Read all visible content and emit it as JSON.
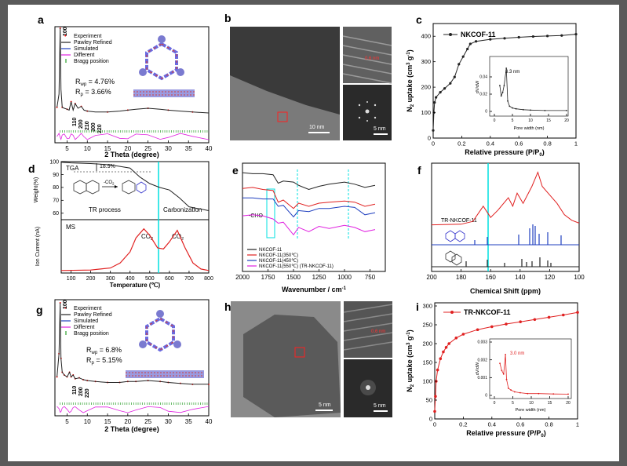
{
  "panels": {
    "a": {
      "letter": "a",
      "legend": [
        "Experiment",
        "Pawley Refined",
        "Simulated",
        "Different",
        "Bragg position"
      ],
      "rwp": "R",
      "rwp_sub": "wp",
      "rwp_val": " = 4.76%",
      "rp": "R",
      "rp_sub": "p",
      "rp_val": " = 3.66%",
      "peaks": [
        "100",
        "110",
        "200",
        "210",
        "300",
        "220"
      ]
    },
    "b": {
      "letter": "b",
      "scale1": "10 nm",
      "scale2": "5 nm",
      "inset_label": "0.6 nm"
    },
    "c": {
      "letter": "c",
      "legend": "NKCOF-11",
      "inset_peak": "3.3 nm",
      "inset_xlabel": "Pore width (nm)",
      "inset_ylabel": "dV/dW"
    },
    "d": {
      "letter": "d",
      "tga": "TGA",
      "loss": "18.9%",
      "loss_gas": "-CO",
      "loss_gas_sub": "2",
      "tr_process": "TR process",
      "carbonization": "Carbonization",
      "ms": "MS",
      "co2_a": "CO",
      "co2_a_sub": "2",
      "co2_b": "CO",
      "co2_b_sub": "2"
    },
    "e": {
      "letter": "e",
      "cho": "-CHO",
      "legend": [
        "NKCOF-11",
        "NKCOF-11(350℃)",
        "NKCOF-11(450℃)",
        "NKCOF-11(550℃) (TR-NKCOF-11)"
      ]
    },
    "f": {
      "letter": "f",
      "label": "TR-NKCOF-11"
    },
    "g": {
      "letter": "g",
      "legend": [
        "Experiment",
        "Pawley Refined",
        "Simulated",
        "Different",
        "Bragg position"
      ],
      "rwp": "R",
      "rwp_sub": "wp",
      "rwp_val": " = 6.8%",
      "rp": "R",
      "rp_sub": "p",
      "rp_val": " = 5.15%",
      "peaks": [
        "100",
        "110",
        "200",
        "220"
      ]
    },
    "h": {
      "letter": "h",
      "scale1": "5 nm",
      "scale2": "5 nm",
      "inset_label": "0.6 nm"
    },
    "i": {
      "letter": "i",
      "legend": "TR-NKCOF-11",
      "inset_peak": "3.0 nm",
      "inset_xlabel": "Pore width (nm)",
      "inset_ylabel": "dV/dW"
    }
  },
  "colors": {
    "experiment": "#ff0000",
    "refined": "#222222",
    "simulated": "#1f3fbf",
    "difference": "#e020e0",
    "bragg": "#2ca02c",
    "cyan": "#00e0e0"
  },
  "chart_data": [
    {
      "panel": "a",
      "type": "line",
      "xlabel": "2 Theta (degree)",
      "ylabel": "",
      "xlim": [
        2,
        40
      ],
      "xticks": [
        5,
        10,
        15,
        20,
        25,
        30,
        35,
        40
      ],
      "series": [
        {
          "name": "Experiment",
          "x": [
            2.5,
            3.0,
            3.3,
            3.5,
            3.8,
            4.3,
            5.0,
            5.5,
            6.0,
            6.5,
            7.0,
            7.7,
            8.5,
            9.2,
            10,
            12,
            15,
            18,
            20,
            22,
            25,
            28,
            30,
            33,
            36,
            40
          ],
          "y": [
            0.16,
            0.3,
            1.0,
            0.35,
            0.16,
            0.15,
            0.14,
            0.13,
            0.22,
            0.13,
            0.2,
            0.15,
            0.17,
            0.13,
            0.12,
            0.11,
            0.11,
            0.12,
            0.13,
            0.14,
            0.15,
            0.14,
            0.13,
            0.12,
            0.11,
            0.1
          ]
        }
      ]
    },
    {
      "panel": "c",
      "type": "line",
      "xlabel": "Relative pressure (P/P",
      "xlabel_sub": "0",
      "xlabel_end": ")",
      "ylabel": "N",
      "ylabel_sub": "2",
      "ylabel_mid": " uptake (cm",
      "ylabel_sup": "3",
      "ylabel_mid2": " g",
      "ylabel_sup2": "-1",
      "ylabel_end": ")",
      "xlim": [
        0,
        1
      ],
      "ylim": [
        0,
        450
      ],
      "xticks": [
        0.0,
        0.2,
        0.4,
        0.6,
        0.8,
        1.0
      ],
      "yticks": [
        0,
        100,
        200,
        300,
        400
      ],
      "series": [
        {
          "name": "NKCOF-11",
          "x": [
            0,
            0.005,
            0.01,
            0.02,
            0.05,
            0.08,
            0.12,
            0.15,
            0.18,
            0.21,
            0.24,
            0.26,
            0.3,
            0.4,
            0.5,
            0.6,
            0.7,
            0.8,
            0.9,
            1.0
          ],
          "y": [
            30,
            100,
            140,
            160,
            180,
            195,
            215,
            240,
            290,
            320,
            350,
            370,
            380,
            388,
            392,
            396,
            399,
            401,
            403,
            408
          ]
        }
      ],
      "inset": {
        "xlim": [
          0,
          20
        ],
        "ylim": [
          0,
          0.06
        ],
        "xticks": [
          0,
          5,
          10,
          15,
          20
        ],
        "yticks": [
          0.0,
          0.02,
          0.04
        ],
        "x": [
          1.5,
          1.9,
          2.3,
          2.7,
          3.3,
          3.7,
          4.2,
          5,
          6,
          8,
          10,
          14,
          20
        ],
        "y": [
          0.03,
          0.018,
          0.022,
          0.03,
          0.05,
          0.012,
          0.006,
          0.004,
          0.003,
          0.002,
          0.0015,
          0.001,
          0.001
        ]
      }
    },
    {
      "panel": "d",
      "type": "line",
      "xlabel": "Temperature (℃)",
      "xlim": [
        50,
        800
      ],
      "xticks": [
        100,
        200,
        300,
        400,
        500,
        600,
        700,
        800
      ],
      "tga": {
        "ylabel": "Weight(%)",
        "ylim": [
          55,
          100
        ],
        "yticks": [
          60,
          70,
          80,
          90,
          100
        ],
        "x": [
          50,
          100,
          200,
          300,
          400,
          450,
          500,
          550,
          600,
          650,
          700,
          800
        ],
        "y": [
          99.5,
          99,
          98.5,
          97.5,
          95,
          88,
          83,
          80,
          78,
          72,
          65,
          62
        ]
      },
      "ms": {
        "ylabel": "Ion Current (nA)",
        "x": [
          50,
          200,
          300,
          350,
          400,
          430,
          470,
          500,
          540,
          570,
          600,
          640,
          680,
          720,
          760,
          800
        ],
        "y": [
          0.05,
          0.06,
          0.1,
          0.2,
          0.42,
          0.7,
          0.88,
          0.75,
          0.5,
          0.48,
          0.62,
          0.85,
          0.5,
          0.2,
          0.08,
          0.05
        ]
      }
    },
    {
      "panel": "e",
      "type": "line",
      "xlabel": "Wavenumber / cm",
      "xlabel_sup": "-1",
      "xlim": [
        2000,
        600
      ],
      "xticks": [
        2000,
        1750,
        1500,
        1250,
        1000,
        750
      ],
      "series": [
        {
          "name": "NKCOF-11",
          "x": [
            2000,
            1900,
            1800,
            1700,
            1650,
            1600,
            1500,
            1450,
            1350,
            1250,
            1150,
            1000,
            900,
            800,
            700
          ],
          "y": [
            0.94,
            0.93,
            0.93,
            0.92,
            0.84,
            0.86,
            0.85,
            0.82,
            0.78,
            0.81,
            0.83,
            0.85,
            0.83,
            0.8,
            0.82
          ]
        },
        {
          "name": "NKCOF-11(350℃)",
          "x": [
            2000,
            1900,
            1800,
            1700,
            1650,
            1600,
            1500,
            1450,
            1350,
            1250,
            1150,
            1000,
            900,
            800,
            700
          ],
          "y": [
            0.79,
            0.8,
            0.78,
            0.77,
            0.66,
            0.68,
            0.6,
            0.65,
            0.62,
            0.65,
            0.66,
            0.67,
            0.66,
            0.62,
            0.64
          ]
        },
        {
          "name": "NKCOF-11(450℃)",
          "x": [
            2000,
            1900,
            1800,
            1700,
            1650,
            1600,
            1500,
            1450,
            1350,
            1250,
            1150,
            1000,
            900,
            800,
            700
          ],
          "y": [
            0.7,
            0.7,
            0.69,
            0.69,
            0.62,
            0.63,
            0.52,
            0.58,
            0.57,
            0.6,
            0.6,
            0.62,
            0.61,
            0.54,
            0.56
          ]
        },
        {
          "name": "NKCOF-11(550℃) (TR-NKCOF-11)",
          "x": [
            2000,
            1900,
            1800,
            1700,
            1650,
            1600,
            1500,
            1450,
            1350,
            1250,
            1150,
            1000,
            900,
            800,
            700
          ],
          "y": [
            0.53,
            0.54,
            0.53,
            0.5,
            0.46,
            0.47,
            0.35,
            0.42,
            0.38,
            0.43,
            0.41,
            0.44,
            0.42,
            0.38,
            0.4
          ]
        }
      ]
    },
    {
      "panel": "f",
      "type": "line",
      "xlabel": "Chemical Shift (ppm)",
      "xlim": [
        200,
        100
      ],
      "xticks": [
        200,
        180,
        160,
        140,
        120,
        100
      ],
      "series": [
        {
          "name": "TR-NKCOF-11",
          "x": [
            200,
            180,
            172,
            165,
            160,
            155,
            148,
            145,
            142,
            138,
            132,
            128,
            125,
            120,
            115,
            110,
            105,
            100
          ],
          "y": [
            0.02,
            0.03,
            0.08,
            0.35,
            0.15,
            0.28,
            0.5,
            0.35,
            0.58,
            0.4,
            0.7,
            0.95,
            0.7,
            0.55,
            0.4,
            0.2,
            0.1,
            0.05
          ]
        }
      ]
    },
    {
      "panel": "g",
      "type": "line",
      "xlabel": "2 Theta (degree)",
      "xlim": [
        2,
        40
      ],
      "xticks": [
        5,
        10,
        15,
        20,
        25,
        30,
        35,
        40
      ],
      "series": [
        {
          "name": "Experiment",
          "x": [
            2.5,
            3.0,
            3.3,
            3.5,
            3.8,
            4.3,
            5.0,
            5.6,
            6.0,
            6.5,
            7.0,
            8.0,
            9.0,
            10,
            12,
            15,
            18,
            20,
            22,
            25,
            28,
            30,
            33,
            36,
            40
          ],
          "y": [
            0.2,
            0.45,
            1.0,
            0.4,
            0.25,
            0.22,
            0.2,
            0.25,
            0.2,
            0.22,
            0.18,
            0.19,
            0.17,
            0.16,
            0.15,
            0.14,
            0.14,
            0.15,
            0.15,
            0.16,
            0.15,
            0.14,
            0.13,
            0.12,
            0.12
          ]
        }
      ]
    },
    {
      "panel": "i",
      "type": "line",
      "xlabel": "Relative pressure (P/P",
      "xlabel_sub": "0",
      "xlabel_end": ")",
      "ylabel": "N",
      "ylabel_sub": "2",
      "ylabel_mid": " uptake (cm",
      "ylabel_sup": "3",
      "ylabel_mid2": " g",
      "ylabel_sup2": "-1",
      "ylabel_end": ")",
      "xlim": [
        0,
        1
      ],
      "ylim": [
        0,
        300
      ],
      "xticks": [
        0.0,
        0.2,
        0.4,
        0.6,
        0.8,
        1.0
      ],
      "yticks": [
        0,
        50,
        100,
        150,
        200,
        250,
        300
      ],
      "series": [
        {
          "name": "TR-NKCOF-11",
          "x": [
            0,
            0.005,
            0.01,
            0.02,
            0.04,
            0.06,
            0.08,
            0.1,
            0.15,
            0.2,
            0.3,
            0.4,
            0.5,
            0.6,
            0.7,
            0.8,
            0.9,
            1.0
          ],
          "y": [
            20,
            60,
            100,
            130,
            160,
            178,
            190,
            200,
            215,
            225,
            237,
            245,
            252,
            258,
            264,
            270,
            276,
            283
          ]
        }
      ],
      "inset": {
        "xlim": [
          0,
          20
        ],
        "ylim": [
          0,
          0.003
        ],
        "xticks": [
          0,
          5,
          10,
          15,
          20
        ],
        "yticks": [
          0.0,
          0.001,
          0.002,
          0.003
        ],
        "x": [
          1.5,
          2.0,
          2.5,
          3.0,
          3.3,
          3.8,
          4.5,
          5.5,
          7,
          9,
          12,
          16,
          20
        ],
        "y": [
          0.0018,
          0.0014,
          0.0012,
          0.0023,
          0.0009,
          0.0004,
          0.0003,
          0.0002,
          0.00015,
          0.0001,
          0.0001,
          8e-05,
          7e-05
        ]
      }
    }
  ]
}
